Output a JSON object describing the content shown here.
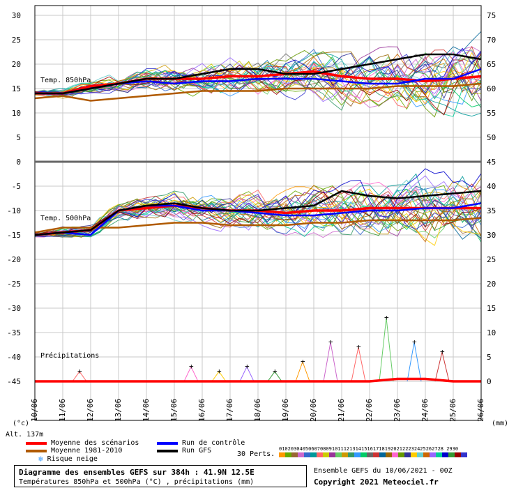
{
  "chart_data": {
    "type": "line",
    "title": "Diagramme des ensembles GEFS sur 384h : 41.9N 12.5E",
    "subtitle": "Températures 850hPa et 500hPa (°C) , précipitations (mm)",
    "x_tick_labels": [
      "10/06",
      "11/06",
      "12/06",
      "13/06",
      "14/06",
      "15/06",
      "16/06",
      "17/06",
      "18/06",
      "19/06",
      "20/06",
      "21/06",
      "22/06",
      "23/06",
      "24/06",
      "25/06",
      "26/06"
    ],
    "y_left_ticks": [
      "30",
      "25",
      "20",
      "15",
      "10",
      "5",
      "0",
      "-5",
      "-10",
      "-15",
      "-20",
      "-25",
      "-30",
      "-35",
      "-40",
      "-45"
    ],
    "y_right_ticks": [
      "75",
      "70",
      "65",
      "60",
      "55",
      "50",
      "45",
      "40",
      "35",
      "30",
      "25",
      "20",
      "15",
      "10",
      "5",
      "0"
    ],
    "y_left_unit": "(°c)",
    "y_right_unit": "(mm)",
    "panel_labels": [
      "Temp. 850hPa",
      "Temp. 500hPa",
      "Précipitations"
    ],
    "alt_label": "Alt. 137m",
    "grid": true,
    "series": [
      {
        "name": "Moyenne des scénarios",
        "color": "#ff0000",
        "panel": "850",
        "values": [
          14,
          14,
          15.5,
          16,
          17,
          17,
          17,
          17.5,
          17.5,
          18,
          18.5,
          17.5,
          17,
          17,
          16.5,
          17,
          17.5
        ]
      },
      {
        "name": "Moyenne 1981-2010",
        "color": "#b05a00",
        "panel": "850",
        "values": [
          13,
          13.5,
          12.5,
          13,
          13.5,
          14,
          14.5,
          14.5,
          14.5,
          15,
          15,
          15,
          15,
          15.5,
          15.5,
          15.5,
          16
        ]
      },
      {
        "name": "Run de contrôle",
        "color": "#0000ff",
        "panel": "850",
        "values": [
          14,
          14,
          15,
          16,
          16.5,
          16,
          16.5,
          16.5,
          17,
          17,
          17,
          16.5,
          16,
          16,
          17,
          17,
          19
        ]
      },
      {
        "name": "Run GFS",
        "color": "#000000",
        "panel": "850",
        "values": [
          14,
          14,
          15,
          16,
          17,
          17,
          18,
          19,
          19,
          18,
          18,
          19,
          20,
          21,
          22,
          22,
          21
        ]
      },
      {
        "name": "Moyenne des scénarios",
        "color": "#ff0000",
        "panel": "500",
        "values": [
          -15,
          -14.5,
          -14,
          -10,
          -9.5,
          -9,
          -9.5,
          -10,
          -10,
          -10.5,
          -10,
          -10,
          -9.5,
          -9.5,
          -9.5,
          -9.5,
          -9.5
        ]
      },
      {
        "name": "Moyenne 1981-2010",
        "color": "#b05a00",
        "panel": "500",
        "values": [
          -14.5,
          -13.5,
          -13.5,
          -13.5,
          -13,
          -12.5,
          -12.5,
          -13,
          -13,
          -13,
          -12.5,
          -12.5,
          -12,
          -12,
          -12,
          -12,
          -11.5
        ]
      },
      {
        "name": "Run de contrôle",
        "color": "#0000ff",
        "panel": "500",
        "values": [
          -15,
          -14.5,
          -15,
          -10,
          -9,
          -9,
          -10,
          -10,
          -10.5,
          -11,
          -11,
          -10.5,
          -10,
          -10,
          -9.5,
          -9.5,
          -8.5
        ]
      },
      {
        "name": "Run GFS",
        "color": "#000000",
        "panel": "500",
        "values": [
          -15,
          -14.5,
          -14,
          -10,
          -9,
          -8.5,
          -9.5,
          -10,
          -10,
          -9.5,
          -9,
          -6,
          -7,
          -7.5,
          -7,
          -6.5,
          -6
        ]
      },
      {
        "name": "Moyenne des scénarios",
        "color": "#ff0000",
        "panel": "precip",
        "values": [
          0,
          0,
          0,
          0,
          0,
          0,
          0,
          0,
          0,
          0,
          0,
          0,
          0,
          0.5,
          0.5,
          0,
          0
        ]
      }
    ],
    "precip_peaks_mm": [
      0,
      0,
      2,
      0,
      0,
      0,
      3,
      2,
      3,
      2,
      4,
      8,
      7,
      13,
      8,
      6,
      0
    ]
  },
  "legend": {
    "items": [
      {
        "label": "Moyenne des scénarios",
        "color": "#ff0000"
      },
      {
        "label": "Moyenne 1981-2010",
        "color": "#b05a00"
      },
      {
        "label": "Run de contrôle",
        "color": "#0000ff"
      },
      {
        "label": "Run GFS",
        "color": "#000000"
      }
    ],
    "snow_label": "Risque neige",
    "perts_label": "30 Perts.",
    "pert_codes": "01020304050607080910111213141516171819202122232425262728 2930",
    "pert_colors": [
      "#ff9900",
      "#66aa00",
      "#996633",
      "#cc66cc",
      "#3366cc",
      "#009999",
      "#ff6666",
      "#cccc00",
      "#993399",
      "#66cc66",
      "#cc9900",
      "#339966",
      "#3399ff",
      "#00cc66",
      "#666666",
      "#cc3333",
      "#006699",
      "#996600",
      "#ff66cc",
      "#669900",
      "#333399",
      "#ffcc00",
      "#66cccc",
      "#cc6600",
      "#9966ff",
      "#00cc99",
      "#0000cc",
      "#339933",
      "#990000",
      "#3333cc"
    ]
  },
  "footer": {
    "title": "Diagramme des ensembles GEFS sur 384h : 41.9N 12.5E",
    "subtitle": "Températures 850hPa et 500hPa (°C) , précipitations (mm)",
    "run_info": "Ensemble GEFS du 10/06/2021 - 00Z",
    "copyright": "Copyright 2021 Meteociel.fr"
  }
}
